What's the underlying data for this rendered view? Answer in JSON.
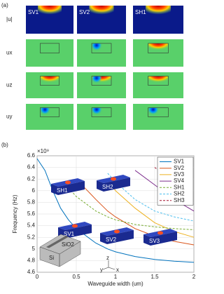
{
  "panel_a": {
    "label": "(a)",
    "columns": [
      "SV1",
      "SV2",
      "SH1"
    ],
    "rows": [
      "|u|",
      "ux",
      "uz",
      "uy"
    ]
  },
  "chart_data": {
    "type": "line",
    "panel_label": "(b)",
    "y_multiplier": "×10⁹",
    "x_label": "Waveguide width (um)",
    "y_label": "Frequency (Hz)",
    "x": [
      0,
      0.1,
      0.2,
      0.3,
      0.4,
      0.5,
      0.75,
      0.9,
      1.0,
      1.25,
      1.5,
      1.75,
      2.0
    ],
    "series": [
      {
        "name": "SV1",
        "color": "#0072bd",
        "dash": false,
        "values": [
          6.55,
          6.35,
          6.0,
          5.7,
          5.5,
          5.35,
          5.1,
          5.0,
          4.95,
          4.87,
          4.82,
          4.79,
          4.77
        ]
      },
      {
        "name": "SV2",
        "color": "#d95319",
        "dash": false,
        "values": [
          null,
          null,
          null,
          null,
          null,
          6.2,
          5.85,
          5.65,
          5.55,
          5.35,
          5.22,
          5.13,
          5.07
        ]
      },
      {
        "name": "SV3",
        "color": "#edb120",
        "dash": false,
        "values": [
          null,
          null,
          null,
          null,
          null,
          null,
          null,
          6.2,
          6.0,
          5.7,
          5.45,
          5.3,
          5.2
        ]
      },
      {
        "name": "SV4",
        "color": "#7e2f8e",
        "dash": false,
        "values": [
          null,
          null,
          null,
          null,
          null,
          null,
          null,
          null,
          null,
          6.35,
          6.1,
          5.85,
          5.65
        ]
      },
      {
        "name": "SH1",
        "color": "#77ac30",
        "dash": true,
        "values": [
          null,
          null,
          null,
          null,
          6.05,
          5.9,
          5.65,
          5.55,
          5.5,
          5.42,
          5.38,
          5.35,
          5.33
        ]
      },
      {
        "name": "SH2",
        "color": "#4dbeee",
        "dash": true,
        "values": [
          null,
          null,
          null,
          null,
          null,
          null,
          null,
          6.3,
          6.15,
          5.85,
          5.65,
          5.55,
          5.48
        ]
      },
      {
        "name": "SH3",
        "color": "#a2142f",
        "dash": true,
        "values": [
          null,
          null,
          null,
          null,
          null,
          null,
          null,
          null,
          null,
          null,
          6.4,
          6.15,
          5.9
        ]
      }
    ],
    "xlim": [
      0,
      2
    ],
    "xticks": [
      0,
      0.5,
      1,
      1.5,
      2
    ],
    "ylim": [
      4.6,
      6.6
    ],
    "yticks": [
      4.6,
      4.8,
      5,
      5.2,
      5.4,
      5.6,
      5.8,
      6,
      6.2,
      6.4,
      6.6
    ],
    "grid": true,
    "legend": "upper right",
    "insets": [
      "SH1",
      "SH2",
      "SV1",
      "SV2",
      "SV3"
    ],
    "waveguide_labels": [
      "Si",
      "SiO2"
    ],
    "axes_labels": [
      "z",
      "y",
      "x"
    ]
  }
}
